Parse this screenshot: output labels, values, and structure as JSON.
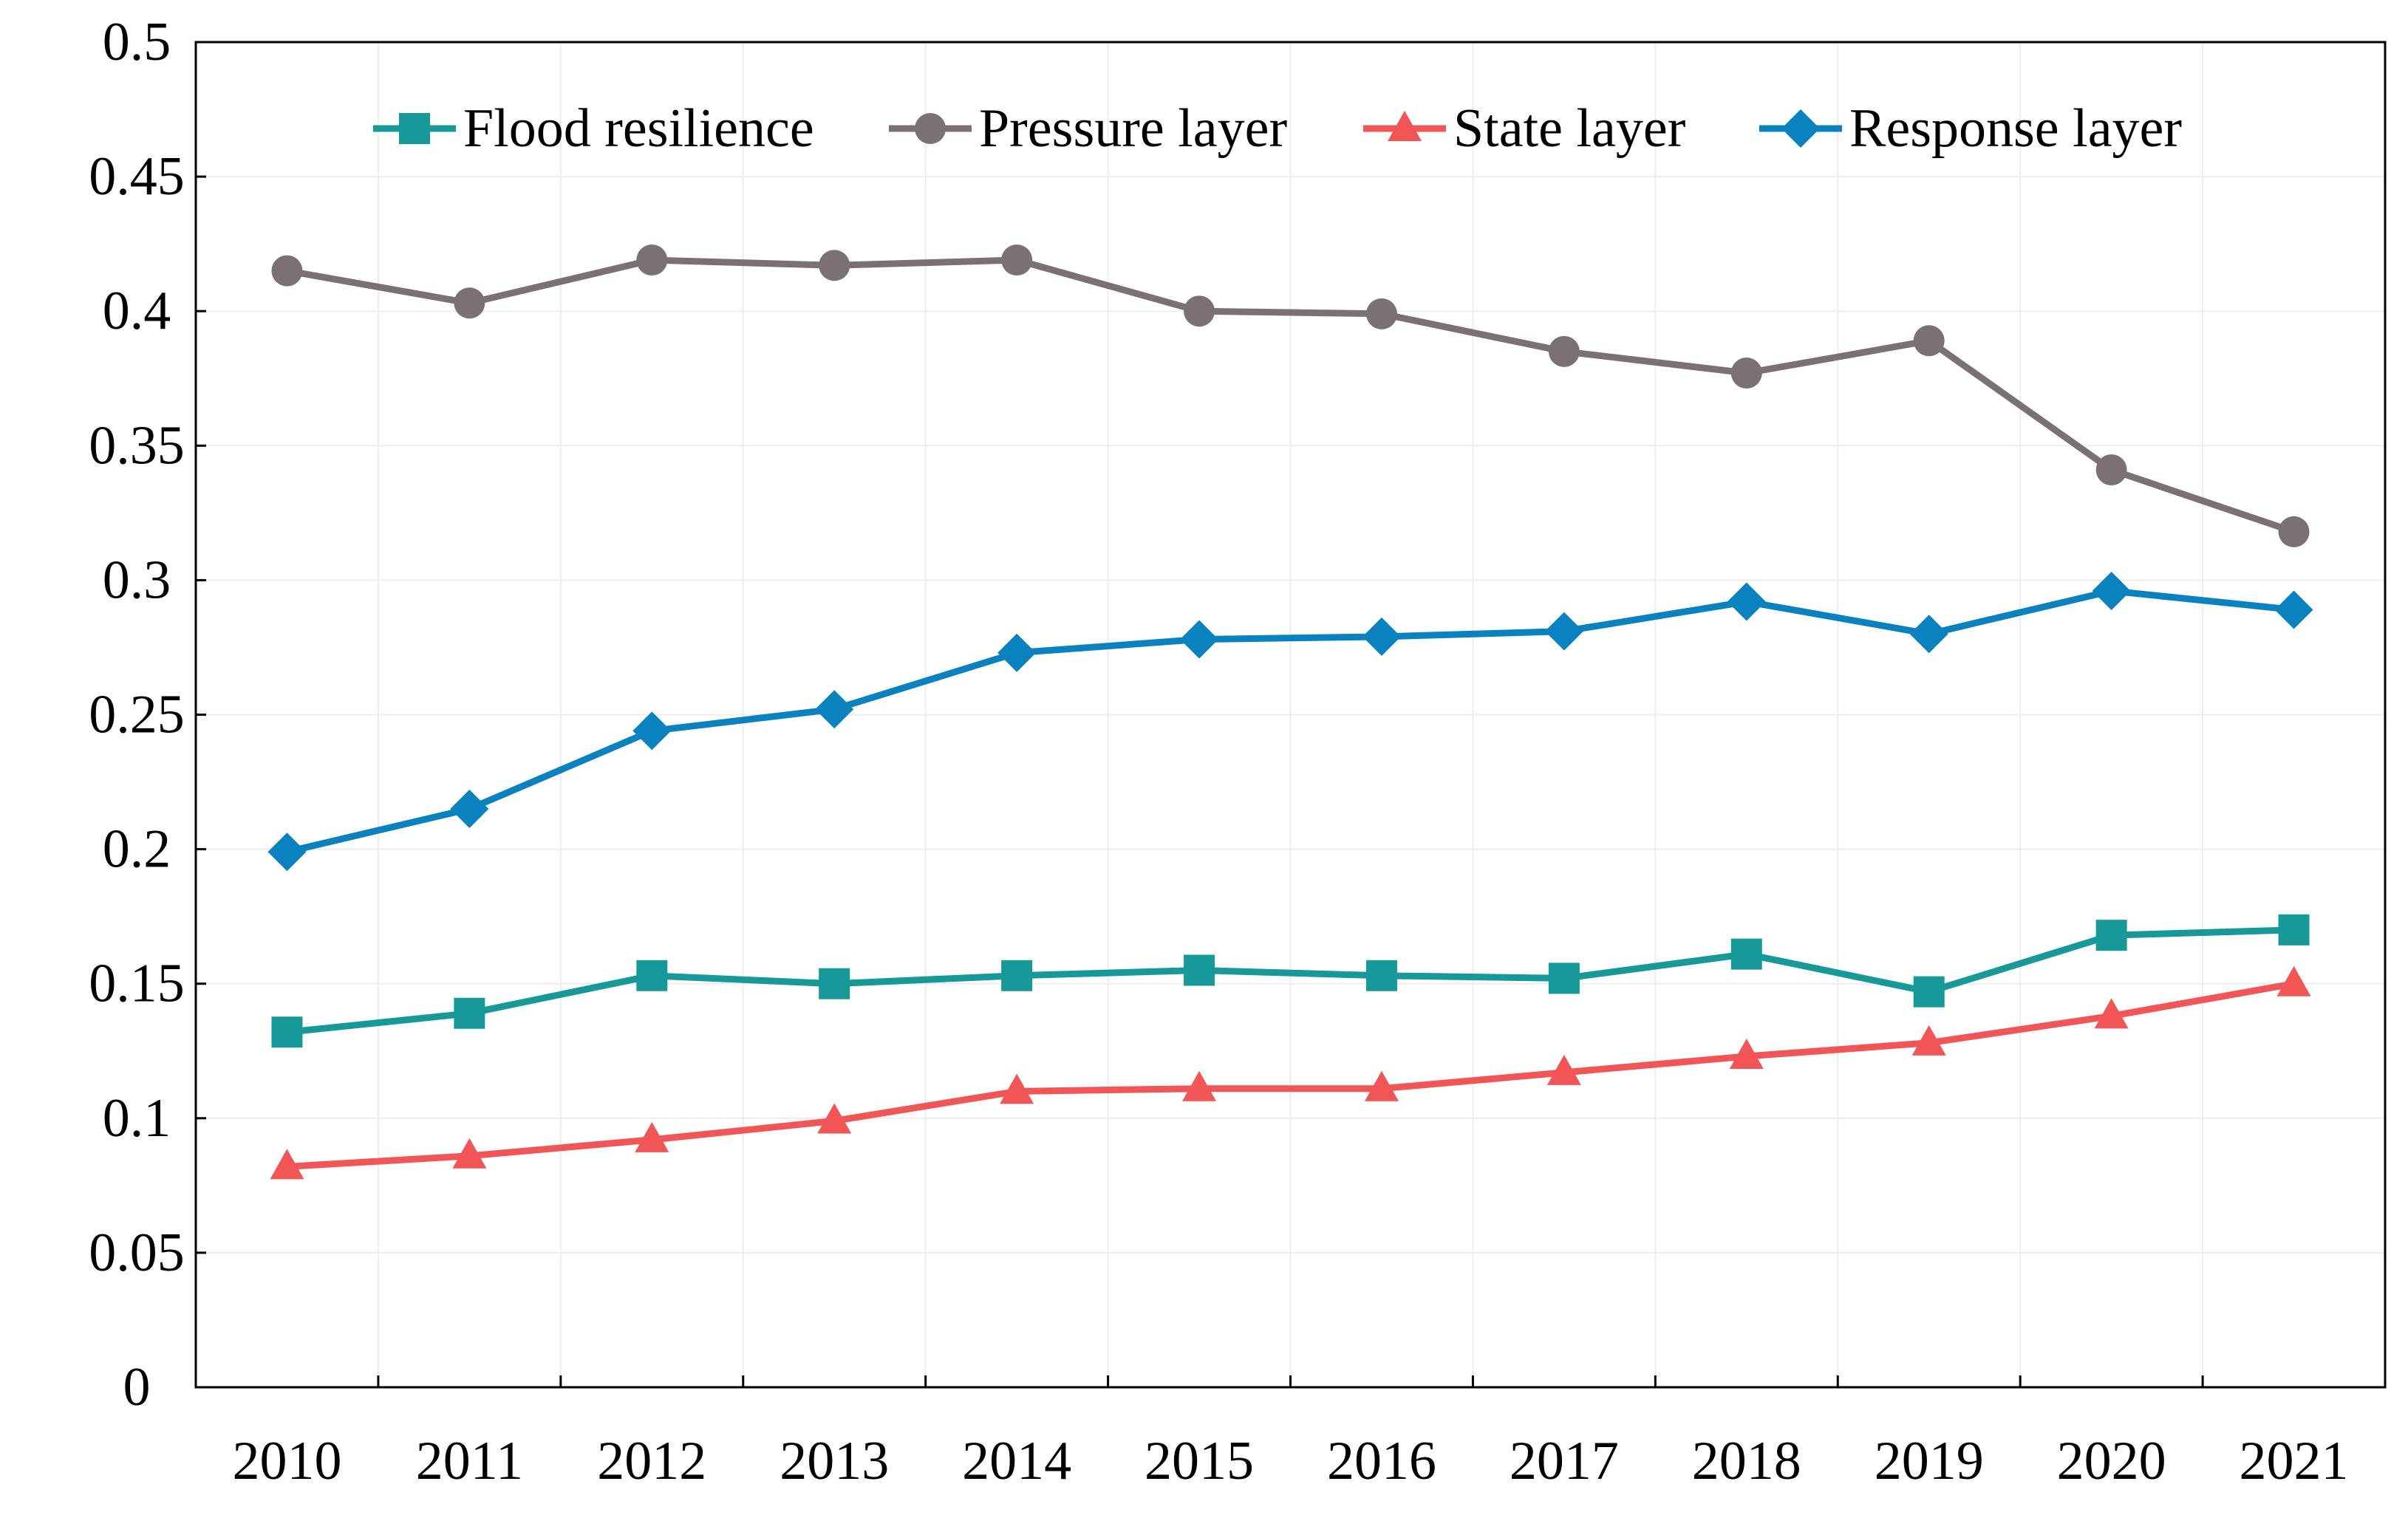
{
  "chart_data": {
    "type": "line",
    "title": "",
    "xlabel": "",
    "ylabel": "",
    "categories": [
      "2010",
      "2011",
      "2012",
      "2013",
      "2014",
      "2015",
      "2016",
      "2017",
      "2018",
      "2019",
      "2020",
      "2021"
    ],
    "ylim": [
      0,
      0.5
    ],
    "yticks": [
      0,
      0.05,
      0.1,
      0.15,
      0.2,
      0.25,
      0.3,
      0.35,
      0.4,
      0.45,
      0.5
    ],
    "ytick_labels": [
      "0",
      "0.05",
      "0.1",
      "0.15",
      "0.2",
      "0.25",
      "0.3",
      "0.35",
      "0.4",
      "0.45",
      "0.5"
    ],
    "grid": true,
    "legend_position": "top",
    "series": [
      {
        "name": "Flood resilience",
        "color": "#17999a",
        "marker": "square",
        "values": [
          0.132,
          0.139,
          0.153,
          0.15,
          0.153,
          0.155,
          0.153,
          0.152,
          0.161,
          0.147,
          0.168,
          0.17
        ]
      },
      {
        "name": "Pressure layer",
        "color": "#7b7174",
        "marker": "circle",
        "values": [
          0.415,
          0.403,
          0.419,
          0.417,
          0.419,
          0.4,
          0.399,
          0.385,
          0.377,
          0.389,
          0.341,
          0.318
        ]
      },
      {
        "name": "State layer",
        "color": "#f25556",
        "marker": "triangle",
        "values": [
          0.082,
          0.086,
          0.092,
          0.099,
          0.11,
          0.111,
          0.111,
          0.117,
          0.123,
          0.128,
          0.138,
          0.15
        ]
      },
      {
        "name": "Response layer",
        "color": "#0a82bf",
        "marker": "diamond",
        "values": [
          0.199,
          0.215,
          0.244,
          0.252,
          0.273,
          0.278,
          0.279,
          0.281,
          0.292,
          0.28,
          0.296,
          0.289
        ]
      }
    ]
  }
}
